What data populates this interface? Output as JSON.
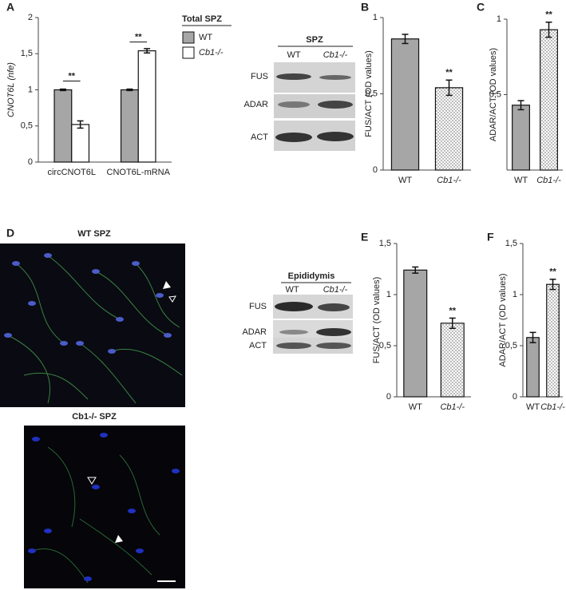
{
  "chart_data": [
    {
      "type": "bar",
      "panel": "A",
      "ylabel": "CNOT6L (nfe)",
      "legend_title": "Total SPZ",
      "categories": [
        "circCNOT6L",
        "CNOT6L-mRNA"
      ],
      "series": [
        {
          "name": "WT",
          "color": "#a6a6a6",
          "values": [
            1.0,
            1.0
          ],
          "errors": [
            0.01,
            0.01
          ]
        },
        {
          "name": "Cb1-/-",
          "color": "#ffffff",
          "values": [
            0.52,
            1.54
          ],
          "errors": [
            0.05,
            0.03
          ]
        }
      ],
      "annotations": [
        "**",
        "**"
      ],
      "ylim": [
        0,
        2
      ],
      "yticks": [
        0,
        {
          "value": 0.5,
          "label": "0,5"
        },
        1,
        {
          "value": 1.5,
          "label": "1,5"
        },
        2
      ],
      "grid": false
    },
    {
      "type": "bar",
      "panel": "B",
      "ylabel": "FUS/ACT (OD values)",
      "categories": [
        "WT",
        "Cb1-/-"
      ],
      "values": [
        0.86,
        0.54
      ],
      "errors": [
        0.03,
        0.05
      ],
      "bar_colors": [
        "#a6a6a6",
        "#ffffff"
      ],
      "bar_patterns": [
        null,
        "dots"
      ],
      "annotations": [
        "**"
      ],
      "ylim": [
        0,
        1
      ],
      "yticks": [
        0,
        {
          "value": 0.5,
          "label": "0,5"
        },
        1
      ],
      "grid": false
    },
    {
      "type": "bar",
      "panel": "C",
      "ylabel": "ADAR/ACT (OD values)",
      "categories": [
        "WT",
        "Cb1-/-"
      ],
      "values": [
        0.43,
        0.93
      ],
      "errors": [
        0.03,
        0.05
      ],
      "bar_colors": [
        "#a6a6a6",
        "#ffffff"
      ],
      "bar_patterns": [
        null,
        "dots"
      ],
      "annotations": [
        "**"
      ],
      "ylim": [
        0,
        1
      ],
      "yticks": [
        {
          "value": 0.5,
          "label": "0,5"
        },
        1
      ],
      "grid": false
    },
    {
      "type": "bar",
      "panel": "E",
      "ylabel": "FUS/ACT (OD values)",
      "categories": [
        "WT",
        "Cb1-/-"
      ],
      "values": [
        1.24,
        0.72
      ],
      "errors": [
        0.03,
        0.05
      ],
      "bar_colors": [
        "#a6a6a6",
        "#ffffff"
      ],
      "bar_patterns": [
        null,
        "dots"
      ],
      "annotations": [
        "**"
      ],
      "ylim": [
        0,
        1.5
      ],
      "yticks": [
        0,
        {
          "value": 0.5,
          "label": "0,5"
        },
        1,
        {
          "value": 1.5,
          "label": "1,5"
        }
      ],
      "grid": false
    },
    {
      "type": "bar",
      "panel": "F",
      "ylabel": "ADAR/ACT (OD values)",
      "categories": [
        "WT",
        "Cb1-/-"
      ],
      "values": [
        0.58,
        1.1
      ],
      "errors": [
        0.05,
        0.05
      ],
      "bar_colors": [
        "#a6a6a6",
        "#ffffff"
      ],
      "bar_patterns": [
        null,
        "dots"
      ],
      "annotations": [
        "**"
      ],
      "ylim": [
        0,
        1.5
      ],
      "yticks": [
        0,
        {
          "value": 0.5,
          "label": "0,5"
        },
        1,
        {
          "value": 1.5,
          "label": "1,5"
        }
      ],
      "grid": false
    }
  ],
  "blot_spz": {
    "title": "SPZ",
    "lanes": [
      "WT",
      "Cb1-/-"
    ],
    "rows": [
      "FUS",
      "ADAR",
      "ACT"
    ]
  },
  "blot_epididymis": {
    "title": "Epididymis",
    "lanes": [
      "WT",
      "Cb1-/-"
    ],
    "rows": [
      "FUS",
      "ADAR",
      "ACT"
    ]
  },
  "microscopy": {
    "panel": "D",
    "top_title": "WT SPZ",
    "bottom_title": "Cb1-/- SPZ"
  }
}
